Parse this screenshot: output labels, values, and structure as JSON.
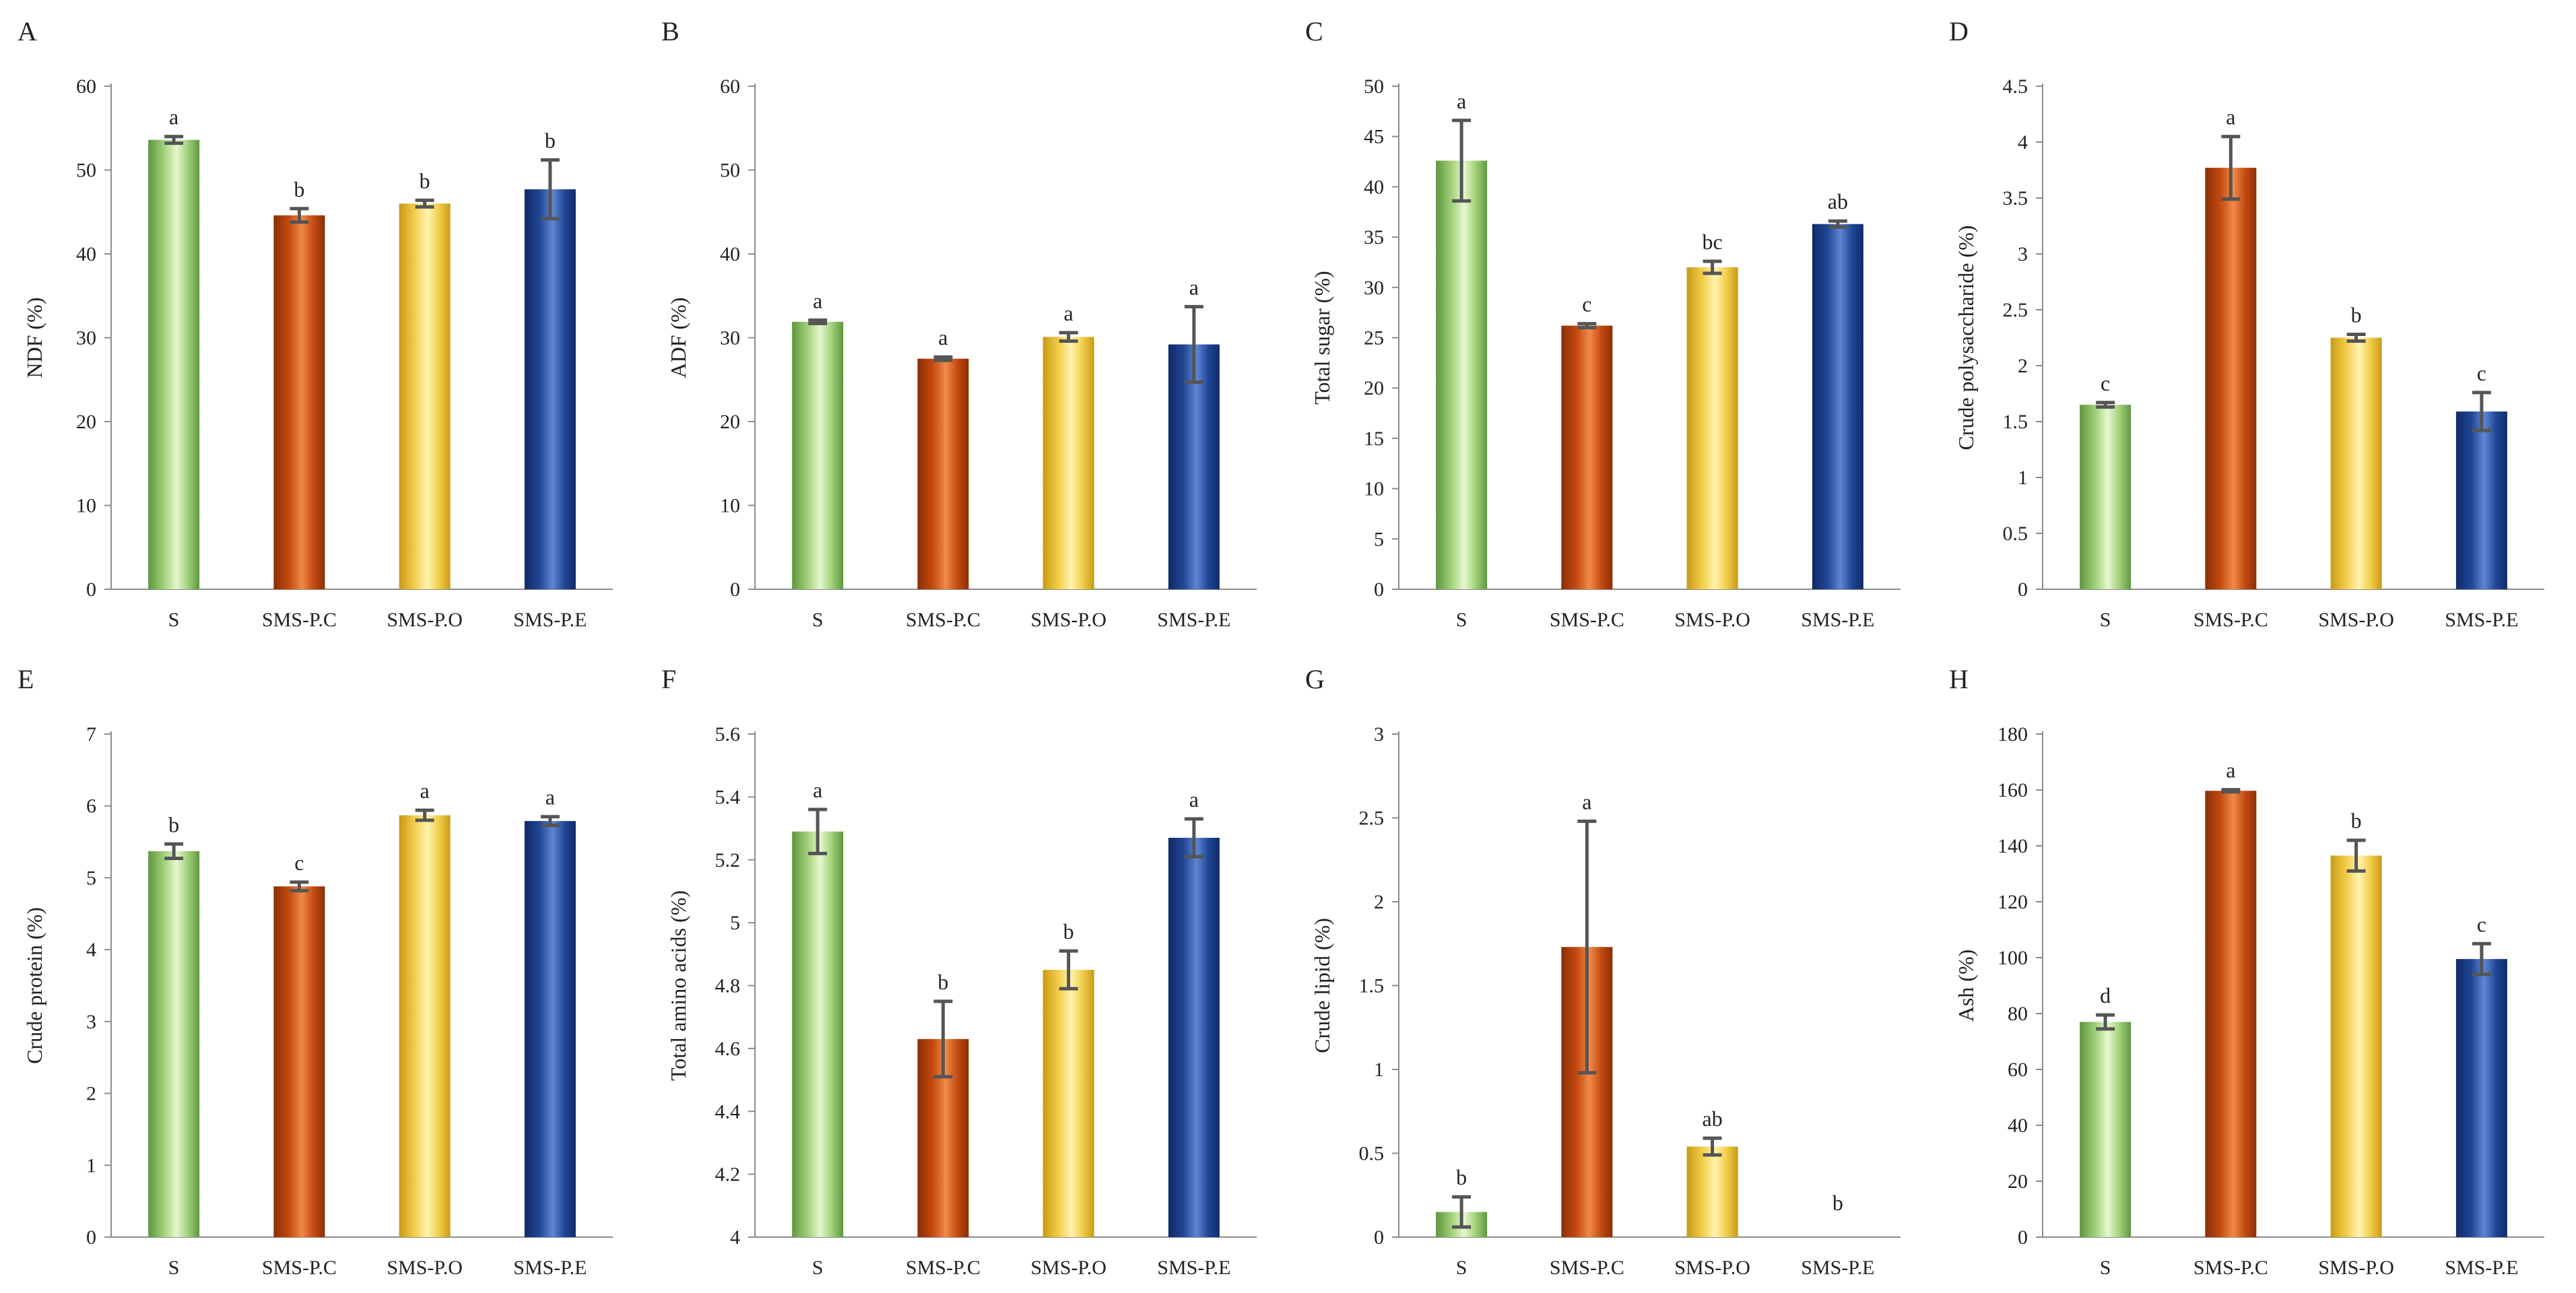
{
  "colors": {
    "S": [
      "#5f9640",
      "#9fd078",
      "#e6f7cf"
    ],
    "SMS-P.C": [
      "#8a2e07",
      "#c44a10",
      "#f08a4a"
    ],
    "SMS-P.O": [
      "#c79a14",
      "#f2cd4a",
      "#fff3b0"
    ],
    "SMS-P.E": [
      "#112a66",
      "#1f4796",
      "#5f86d1"
    ]
  },
  "chart_data": [
    {
      "panel": "A",
      "type": "bar",
      "categories": [
        "S",
        "SMS-P.C",
        "SMS-P.O",
        "SMS-P.E"
      ],
      "values": [
        53.6,
        44.6,
        46.0,
        47.7
      ],
      "errors": [
        0.4,
        0.8,
        0.4,
        3.5
      ],
      "letters": [
        "a",
        "b",
        "b",
        "b"
      ],
      "ylabel": "NDF (%)",
      "ylim": [
        0,
        60
      ],
      "yticks": [
        "0",
        "10",
        "20",
        "30",
        "40",
        "50",
        "60"
      ]
    },
    {
      "panel": "B",
      "type": "bar",
      "categories": [
        "S",
        "SMS-P.C",
        "SMS-P.O",
        "SMS-P.E"
      ],
      "values": [
        31.9,
        27.5,
        30.1,
        29.2
      ],
      "errors": [
        0.2,
        0.2,
        0.5,
        4.5
      ],
      "letters": [
        "a",
        "a",
        "a",
        "a"
      ],
      "ylabel": "ADF (%)",
      "ylim": [
        0,
        60
      ],
      "yticks": [
        "0",
        "10",
        "20",
        "30",
        "40",
        "50",
        "60"
      ]
    },
    {
      "panel": "C",
      "type": "bar",
      "categories": [
        "S",
        "SMS-P.C",
        "SMS-P.O",
        "SMS-P.E"
      ],
      "values": [
        42.6,
        26.2,
        32.0,
        36.3
      ],
      "errors": [
        4.0,
        0.2,
        0.6,
        0.3
      ],
      "letters": [
        "a",
        "c",
        "bc",
        "ab"
      ],
      "ylabel": "Total sugar (%)",
      "ylim": [
        0,
        50
      ],
      "yticks": [
        "0",
        "5",
        "10",
        "15",
        "20",
        "25",
        "30",
        "35",
        "40",
        "45",
        "50"
      ]
    },
    {
      "panel": "D",
      "type": "bar",
      "categories": [
        "S",
        "SMS-P.C",
        "SMS-P.O",
        "SMS-P.E"
      ],
      "values": [
        1.65,
        3.77,
        2.25,
        1.59
      ],
      "errors": [
        0.02,
        0.28,
        0.03,
        0.17
      ],
      "letters": [
        "c",
        "a",
        "b",
        "c"
      ],
      "ylabel": "Crude polysaccharide (%)",
      "ylim": [
        0,
        4.5
      ],
      "yticks": [
        "0",
        "0.5",
        "1",
        "1.5",
        "2",
        "2.5",
        "3",
        "3.5",
        "4",
        "4.5"
      ]
    },
    {
      "panel": "E",
      "type": "bar",
      "categories": [
        "S",
        "SMS-P.C",
        "SMS-P.O",
        "SMS-P.E"
      ],
      "values": [
        5.37,
        4.88,
        5.87,
        5.79
      ],
      "errors": [
        0.1,
        0.06,
        0.07,
        0.06
      ],
      "letters": [
        "b",
        "c",
        "a",
        "a"
      ],
      "ylabel": "Crude protein (%)",
      "ylim": [
        0,
        7
      ],
      "yticks": [
        "0",
        "1",
        "2",
        "3",
        "4",
        "5",
        "6",
        "7"
      ]
    },
    {
      "panel": "F",
      "type": "bar",
      "categories": [
        "S",
        "SMS-P.C",
        "SMS-P.O",
        "SMS-P.E"
      ],
      "values": [
        5.29,
        4.63,
        4.85,
        5.27
      ],
      "errors": [
        0.07,
        0.12,
        0.06,
        0.06
      ],
      "letters": [
        "a",
        "b",
        "b",
        "a"
      ],
      "ylabel": "Total amino acids (%)",
      "ylim": [
        4,
        5.6
      ],
      "yticks": [
        "4",
        "4.2",
        "4.4",
        "4.6",
        "4.8",
        "5",
        "5.2",
        "5.4",
        "5.6"
      ]
    },
    {
      "panel": "G",
      "type": "bar",
      "categories": [
        "S",
        "SMS-P.C",
        "SMS-P.O",
        "SMS-P.E"
      ],
      "values": [
        0.15,
        1.73,
        0.54,
        0
      ],
      "errors": [
        0.09,
        0.75,
        0.05,
        0
      ],
      "letters": [
        "b",
        "a",
        "ab",
        "b"
      ],
      "ylabel": "Crude lipid (%)",
      "ylim": [
        0,
        3
      ],
      "yticks": [
        "0",
        "0.5",
        "1",
        "1.5",
        "2",
        "2.5",
        "3"
      ]
    },
    {
      "panel": "H",
      "type": "bar",
      "categories": [
        "S",
        "SMS-P.C",
        "SMS-P.O",
        "SMS-P.E"
      ],
      "values": [
        77,
        159.7,
        136.5,
        99.5
      ],
      "errors": [
        2.5,
        0.4,
        5.5,
        5.5
      ],
      "letters": [
        "d",
        "a",
        "b",
        "c"
      ],
      "ylabel": "Ash (%)",
      "ylim": [
        0,
        180
      ],
      "yticks": [
        "0",
        "20",
        "40",
        "60",
        "80",
        "100",
        "120",
        "140",
        "160",
        "180"
      ]
    }
  ]
}
